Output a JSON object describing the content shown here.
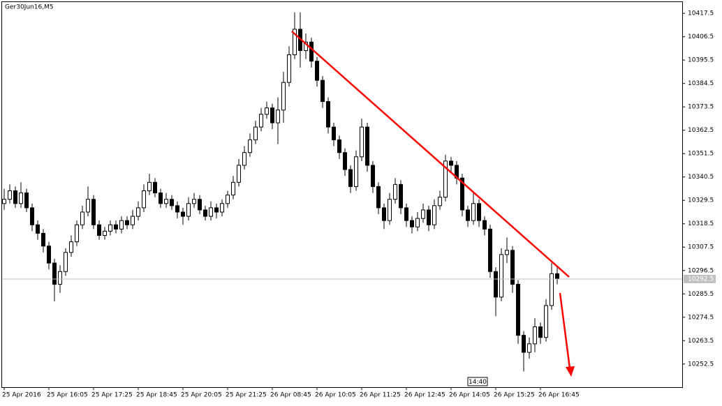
{
  "chart_data": {
    "type": "candlestick",
    "title": "Ger30Jun16,M5",
    "categories": [
      "25 Apr 2016",
      null,
      null,
      null,
      null,
      null,
      null,
      null,
      "25 Apr 16:05",
      null,
      null,
      null,
      null,
      null,
      null,
      null,
      "25 Apr 17:25",
      null,
      null,
      null,
      null,
      null,
      null,
      null,
      "25 Apr 18:45",
      null,
      null,
      null,
      null,
      null,
      null,
      null,
      "25 Apr 20:05",
      null,
      null,
      null,
      null,
      null,
      null,
      null,
      "25 Apr 21:25",
      null,
      null,
      null,
      null,
      null,
      null,
      null,
      "26 Apr 08:45",
      null,
      null,
      null,
      null,
      null,
      null,
      null,
      "26 Apr 10:05",
      null,
      null,
      null,
      null,
      null,
      null,
      null,
      "26 Apr 11:25",
      null,
      null,
      null,
      null,
      null,
      null,
      null,
      "26 Apr 12:45",
      null,
      null,
      null,
      null,
      null,
      null,
      null,
      "26 Apr 14:05",
      null,
      null,
      null,
      null,
      null,
      null,
      null,
      "26 Apr 15:25",
      null,
      null,
      null,
      null,
      null,
      null,
      null,
      "26 Apr 16:45",
      null,
      null,
      null
    ],
    "open": [
      10328,
      10330,
      10334,
      10328,
      10333,
      10326,
      10318,
      10314,
      10308,
      10300,
      10290,
      10296,
      10305,
      10310,
      10318,
      10324,
      10330,
      10318,
      10313,
      10315,
      10318,
      10316,
      10320,
      10318,
      10322,
      10326,
      10334,
      10338,
      10333,
      10328,
      10330,
      10327,
      10324,
      10322,
      10328,
      10330,
      10325,
      10322,
      10326,
      10324,
      10328,
      10332,
      10338,
      10346,
      10352,
      10358,
      10364,
      10370,
      10373,
      10366,
      10372,
      10385,
      10398,
      10410,
      10400,
      10404,
      10395,
      10386,
      10376,
      10364,
      10358,
      10352,
      10344,
      10336,
      10350,
      10364,
      10346,
      10336,
      10326,
      10320,
      10330,
      10337,
      10326,
      10320,
      10317,
      10321,
      10325,
      10318,
      10327,
      10331,
      10348,
      10346,
      10340,
      10325,
      10320,
      10328,
      10320,
      10316,
      10296,
      10284,
      10304,
      10306,
      10290,
      10266,
      10258,
      10262,
      10270,
      10265,
      10280,
      10295
    ],
    "high": [
      10335,
      10337,
      10336,
      10338,
      10335,
      10328,
      10320,
      10316,
      10310,
      10302,
      10299,
      10307,
      10313,
      10320,
      10327,
      10336,
      10332,
      10320,
      10317,
      10320,
      10320,
      10322,
      10322,
      10325,
      10329,
      10337,
      10342,
      10340,
      10335,
      10333,
      10332,
      10329,
      10326,
      10331,
      10333,
      10332,
      10327,
      10329,
      10328,
      10330,
      10334,
      10341,
      10349,
      10355,
      10361,
      10367,
      10373,
      10376,
      10375,
      10378,
      10390,
      10402,
      10418,
      10418,
      10408,
      10406,
      10397,
      10388,
      10378,
      10366,
      10360,
      10354,
      10346,
      10353,
      10368,
      10366,
      10348,
      10338,
      10328,
      10333,
      10340,
      10339,
      10328,
      10322,
      10324,
      10328,
      10327,
      10330,
      10334,
      10351,
      10350,
      10348,
      10342,
      10327,
      10333,
      10330,
      10322,
      10318,
      10298,
      10307,
      10312,
      10308,
      10292,
      10268,
      10265,
      10274,
      10272,
      10283,
      10300,
      10298
    ],
    "low": [
      10325,
      10328,
      10326,
      10326,
      10324,
      10315,
      10311,
      10305,
      10297,
      10282,
      10286,
      10294,
      10303,
      10308,
      10316,
      10322,
      10316,
      10311,
      10311,
      10313,
      10314,
      10314,
      10316,
      10316,
      10320,
      10324,
      10332,
      10331,
      10326,
      10326,
      10325,
      10321,
      10318,
      10320,
      10326,
      10323,
      10320,
      10320,
      10321,
      10322,
      10326,
      10330,
      10336,
      10344,
      10350,
      10356,
      10362,
      10368,
      10363,
      10356,
      10366,
      10383,
      10396,
      10392,
      10396,
      10392,
      10383,
      10373,
      10361,
      10355,
      10349,
      10341,
      10333,
      10334,
      10348,
      10343,
      10333,
      10323,
      10316,
      10318,
      10328,
      10323,
      10317,
      10314,
      10315,
      10319,
      10315,
      10316,
      10325,
      10329,
      10343,
      10337,
      10322,
      10317,
      10318,
      10317,
      10313,
      10293,
      10275,
      10282,
      10300,
      10286,
      10262,
      10249,
      10255,
      10258,
      10262,
      10263,
      10278,
      10290
    ],
    "close": [
      10330,
      10334,
      10328,
      10333,
      10326,
      10318,
      10314,
      10308,
      10300,
      10290,
      10296,
      10305,
      10310,
      10318,
      10324,
      10330,
      10318,
      10313,
      10315,
      10318,
      10316,
      10320,
      10318,
      10322,
      10326,
      10334,
      10338,
      10333,
      10328,
      10330,
      10327,
      10324,
      10322,
      10328,
      10330,
      10325,
      10322,
      10326,
      10324,
      10328,
      10332,
      10338,
      10346,
      10352,
      10358,
      10364,
      10370,
      10373,
      10366,
      10372,
      10385,
      10398,
      10410,
      10400,
      10404,
      10395,
      10386,
      10376,
      10364,
      10358,
      10352,
      10344,
      10336,
      10350,
      10364,
      10346,
      10336,
      10326,
      10320,
      10330,
      10337,
      10326,
      10320,
      10317,
      10321,
      10325,
      10318,
      10327,
      10331,
      10348,
      10346,
      10340,
      10325,
      10320,
      10328,
      10320,
      10316,
      10296,
      10284,
      10304,
      10306,
      10290,
      10266,
      10258,
      10262,
      10270,
      10265,
      10280,
      10295,
      10292.5
    ],
    "ylim": [
      10241.6,
      10422.8
    ],
    "yticks": [
      10417.5,
      10406.5,
      10395.5,
      10384.5,
      10373.5,
      10362.5,
      10351.5,
      10340.5,
      10329.5,
      10318.5,
      10307.5,
      10296.5,
      10285.5,
      10274.5,
      10263.5,
      10252.5
    ],
    "current_price": 10292.5,
    "time_marker": "14:40"
  }
}
